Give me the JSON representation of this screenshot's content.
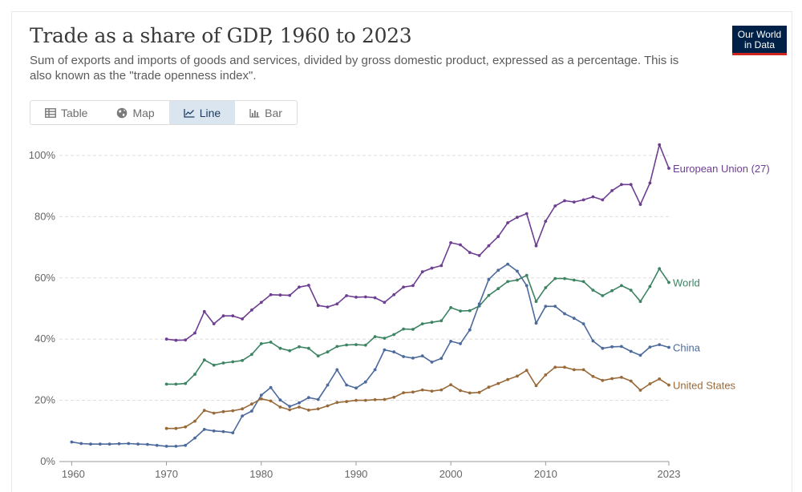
{
  "header": {
    "title": "Trade as a share of GDP, 1960 to 2023",
    "subtitle": "Sum of exports and imports of goods and services, divided by gross domestic product, expressed as a percentage. This is also known as the \"trade openness index\".",
    "logo_line1": "Our World",
    "logo_line2": "in Data"
  },
  "tabs": [
    {
      "label": "Table",
      "icon": "table-icon",
      "active": false
    },
    {
      "label": "Map",
      "icon": "globe-icon",
      "active": false
    },
    {
      "label": "Line",
      "icon": "line-chart-icon",
      "active": true
    },
    {
      "label": "Bar",
      "icon": "bar-chart-icon",
      "active": false
    }
  ],
  "chart_data": {
    "type": "line",
    "title": "Trade as a share of GDP, 1960 to 2023",
    "xlabel": "",
    "ylabel": "",
    "xlim": [
      1958.7,
      2023
    ],
    "ylim": [
      0,
      100
    ],
    "grid": true,
    "x_ticks": [
      1960,
      1970,
      1980,
      1990,
      2000,
      2010,
      2023
    ],
    "y_ticks": [
      {
        "value": 0,
        "label": "0%"
      },
      {
        "value": 20,
        "label": "20%"
      },
      {
        "value": 40,
        "label": "40%"
      },
      {
        "value": 60,
        "label": "60%"
      },
      {
        "value": 80,
        "label": "80%"
      },
      {
        "value": 100,
        "label": "100%"
      }
    ],
    "legend": "end-of-line labels",
    "series": [
      {
        "name": "European Union (27)",
        "color": "#6d3e91",
        "start": 1970,
        "values": [
          40,
          39.6,
          39.7,
          42,
          49,
          45,
          47.6,
          47.6,
          46.6,
          49.5,
          52,
          54.5,
          54.4,
          54.3,
          57,
          57.6,
          51,
          50.5,
          51.5,
          54.2,
          53.7,
          53.8,
          53.5,
          52,
          54.5,
          57,
          57.5,
          62,
          63.2,
          64,
          71.5,
          70.8,
          68.3,
          67.3,
          70.5,
          73.5,
          78,
          79.8,
          81,
          70.5,
          78.5,
          83.5,
          85.2,
          84.8,
          85.5,
          86.5,
          85.5,
          88.5,
          90.5,
          90.5,
          84,
          91,
          103.5,
          95.8
        ]
      },
      {
        "name": "World",
        "color": "#3d8463",
        "start": 1970,
        "values": [
          25.3,
          25.3,
          25.5,
          28.5,
          33.2,
          31.5,
          32.2,
          32.6,
          33,
          35,
          38.5,
          39,
          37,
          36.2,
          37.5,
          37,
          34.5,
          35.8,
          37.6,
          38.1,
          38.2,
          38,
          40.8,
          40.3,
          41.5,
          43.3,
          43.2,
          45,
          45.5,
          46,
          50.3,
          49.2,
          49.3,
          50.8,
          54.3,
          56.5,
          58.8,
          59.3,
          60.8,
          52.3,
          56.8,
          59.8,
          59.8,
          59.3,
          58.8,
          56,
          54.2,
          55.8,
          57.5,
          56,
          52.3,
          57.2,
          63,
          58.5
        ]
      },
      {
        "name": "China",
        "color": "#4c6a9c",
        "start": 1960,
        "values": [
          6.4,
          5.9,
          5.7,
          5.7,
          5.7,
          5.8,
          5.9,
          5.7,
          5.6,
          5.3,
          5,
          5,
          5.3,
          7.7,
          10.5,
          10,
          9.8,
          9.4,
          14.9,
          16.5,
          21.7,
          24.2,
          20.1,
          18,
          19.2,
          20.9,
          20.3,
          25,
          30,
          25,
          24,
          26,
          30,
          36.5,
          35.8,
          34.3,
          33.8,
          34.5,
          32.5,
          33.7,
          39.3,
          38.5,
          43,
          51.5,
          59.5,
          62.5,
          64.5,
          62.2,
          57.5,
          45.2,
          50.7,
          50.7,
          48.3,
          46.8,
          45,
          39.4,
          37,
          37.5,
          37.6,
          36,
          34.7,
          37.4,
          38.2,
          37.3
        ]
      },
      {
        "name": "United States",
        "color": "#996a39",
        "start": 1970,
        "values": [
          10.8,
          10.8,
          11.3,
          13.2,
          16.7,
          15.8,
          16.3,
          16.6,
          17.2,
          18.8,
          20.5,
          19.8,
          17.8,
          16.9,
          17.8,
          16.8,
          17.2,
          18.2,
          19.3,
          19.6,
          20,
          20,
          20.2,
          20.3,
          21,
          22.5,
          22.7,
          23.4,
          23,
          23.4,
          25.1,
          23.2,
          22.4,
          22.6,
          24.3,
          25.5,
          26.8,
          27.9,
          29.8,
          24.8,
          28.3,
          30.8,
          30.8,
          30,
          30,
          27.8,
          26.5,
          27.1,
          27.5,
          26.3,
          23.3,
          25.4,
          27,
          25
        ]
      }
    ]
  }
}
